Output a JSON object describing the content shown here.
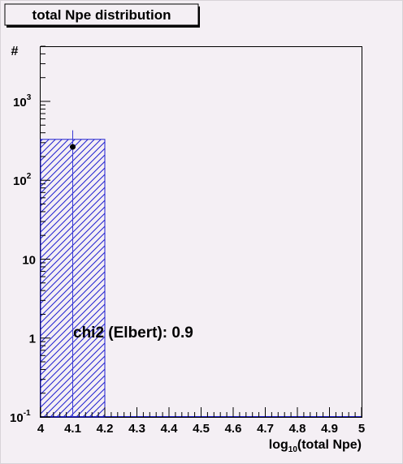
{
  "chart_data": {
    "type": "bar",
    "title": "total Npe distribution",
    "ylabel": "#",
    "xlabel": {
      "prefix": "log",
      "subscript": "10",
      "suffix": "(total Npe)"
    },
    "xlim": [
      4,
      5
    ],
    "ylim": [
      0.1,
      5000
    ],
    "yscale": "log",
    "x_ticks": [
      "4",
      "4.1",
      "4.2",
      "4.3",
      "4.4",
      "4.5",
      "4.6",
      "4.7",
      "4.8",
      "4.9",
      "5"
    ],
    "y_ticks": [
      {
        "value": 0.1,
        "base": "10",
        "exp": "-1"
      },
      {
        "value": 1,
        "base": "1",
        "exp": ""
      },
      {
        "value": 10,
        "base": "10",
        "exp": ""
      },
      {
        "value": 100,
        "base": "10",
        "exp": "2"
      },
      {
        "value": 1000,
        "base": "10",
        "exp": "3"
      }
    ],
    "histogram": {
      "bin_edges": [
        4.0,
        4.2,
        4.4,
        4.6,
        4.8,
        5.0
      ],
      "values": [
        330,
        0,
        0,
        0,
        0
      ]
    },
    "data_points": [
      {
        "x": 4.1,
        "y": 265,
        "y_err_low": 265,
        "y_err_high": 430
      }
    ],
    "annotation": "chi2 (Elbert): 0.9",
    "grid": false,
    "legend": "none",
    "colors": {
      "background": "#f4eff4",
      "histogram": "#1f1fcf",
      "marker": "#000000",
      "errorbar": "#3b3bd6"
    }
  }
}
